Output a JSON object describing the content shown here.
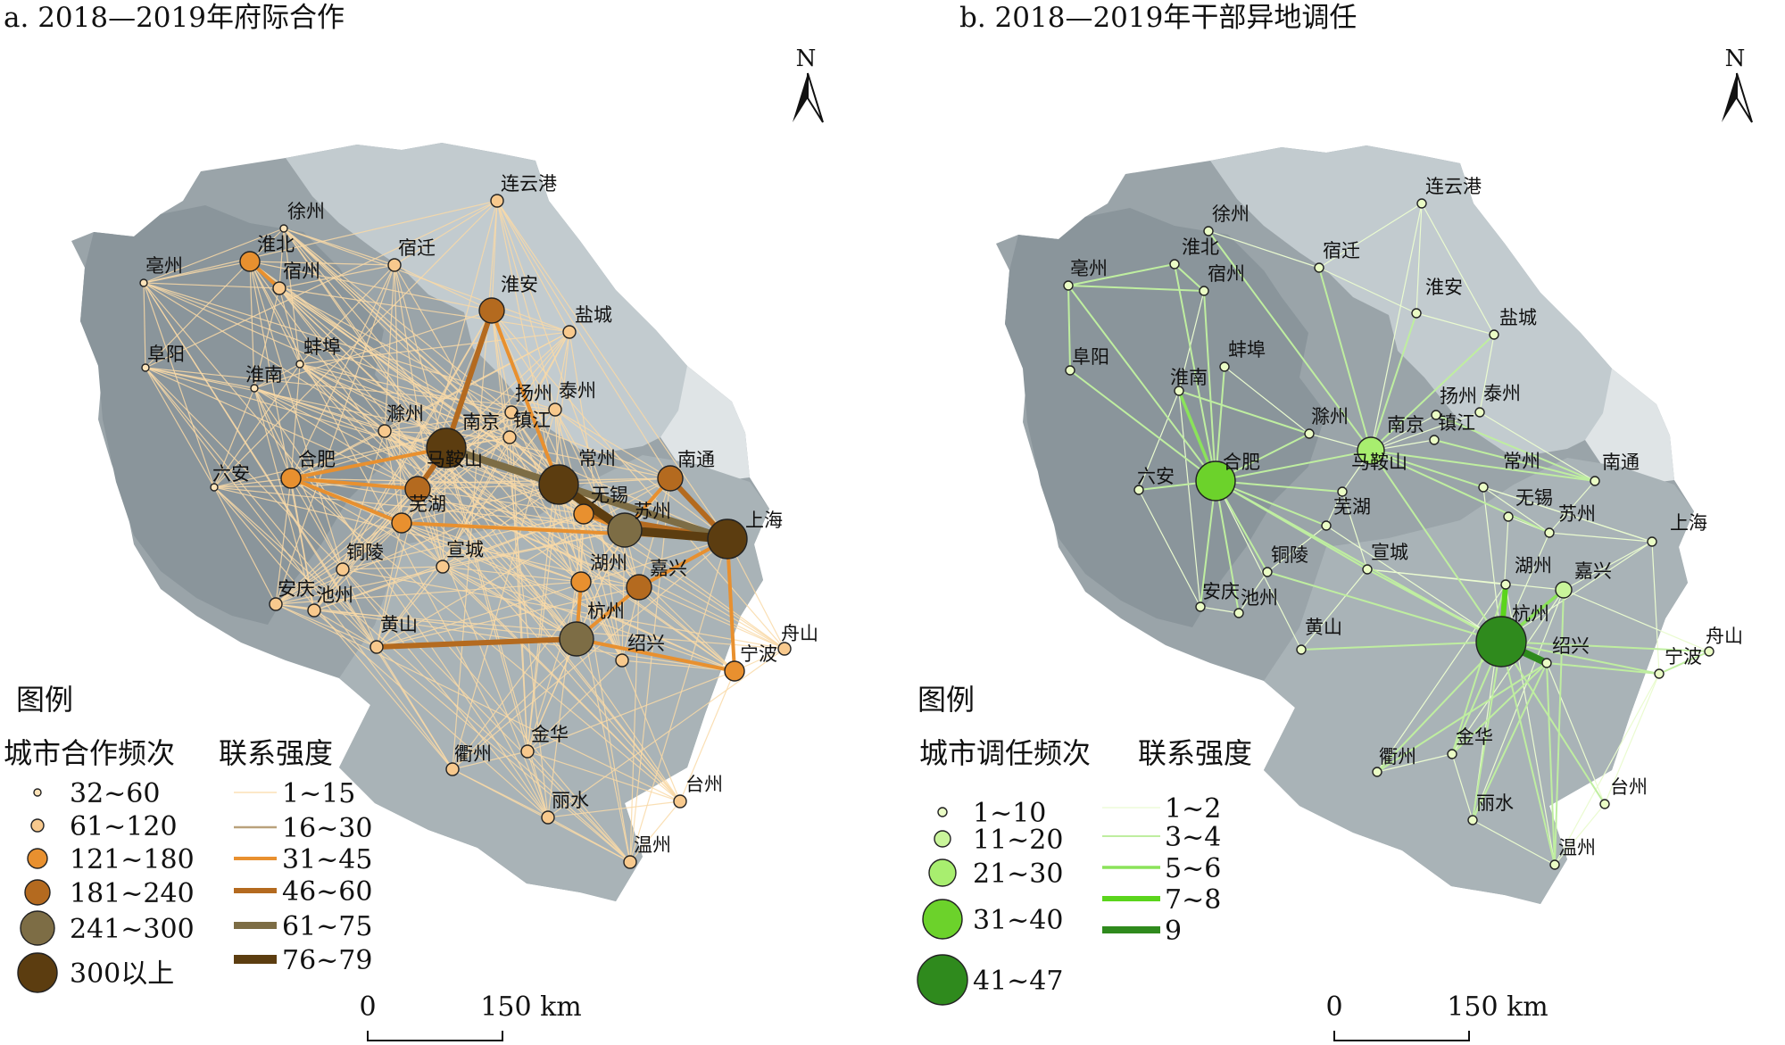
{
  "maps": [
    {
      "id": "a",
      "title": "a. 2018—2019年府际合作",
      "legend": {
        "heading": "图例",
        "node_title": "城市合作频次",
        "link_title": "联系强度",
        "node_classes": [
          "32~60",
          "61~120",
          "121~180",
          "181~240",
          "241~300",
          "300以上"
        ],
        "link_classes": [
          "1~15",
          "16~30",
          "31~45",
          "46~60",
          "61~75",
          "76~79"
        ]
      },
      "north_label": "N",
      "scale": {
        "zero": "0",
        "distance": "150 km"
      },
      "colors": {
        "nodes": [
          "#fde3b8",
          "#f8c98d",
          "#e8902f",
          "#b46a1f",
          "#7d6d45",
          "#5c3d10"
        ],
        "links": [
          "#f9d9a7",
          "#b9a27c",
          "#e8902f",
          "#b46a1f",
          "#7d6d45",
          "#5c3d10"
        ]
      }
    },
    {
      "id": "b",
      "title": "b. 2018—2019年干部异地调任",
      "legend": {
        "heading": "图例",
        "node_title": "城市调任频次",
        "link_title": "联系强度",
        "node_classes": [
          "1~10",
          "11~20",
          "21~30",
          "31~40",
          "41~47"
        ],
        "link_classes": [
          "1~2",
          "3~4",
          "5~6",
          "7~8",
          "9"
        ]
      },
      "north_label": "N",
      "scale": {
        "zero": "0",
        "distance": "150 km"
      },
      "colors": {
        "nodes": [
          "#eafcc5",
          "#c9f59a",
          "#a8ee6f",
          "#6cd22b",
          "#2f8a1d"
        ],
        "links": [
          "#eafbd0",
          "#bfeea0",
          "#8be35a",
          "#5bd51c",
          "#2f8a1d"
        ]
      }
    }
  ],
  "cities": [
    {
      "name": "连云港"
    },
    {
      "name": "徐州"
    },
    {
      "name": "淮北"
    },
    {
      "name": "宿迁"
    },
    {
      "name": "亳州"
    },
    {
      "name": "宿州"
    },
    {
      "name": "淮安"
    },
    {
      "name": "盐城"
    },
    {
      "name": "阜阳"
    },
    {
      "name": "蚌埠"
    },
    {
      "name": "淮南"
    },
    {
      "name": "扬州"
    },
    {
      "name": "泰州"
    },
    {
      "name": "滁州"
    },
    {
      "name": "南京"
    },
    {
      "name": "镇江"
    },
    {
      "name": "六安"
    },
    {
      "name": "合肥"
    },
    {
      "name": "马鞍山"
    },
    {
      "name": "常州"
    },
    {
      "name": "南通"
    },
    {
      "name": "芜湖"
    },
    {
      "name": "无锡"
    },
    {
      "name": "苏州"
    },
    {
      "name": "上海"
    },
    {
      "name": "宣城"
    },
    {
      "name": "铜陵"
    },
    {
      "name": "湖州"
    },
    {
      "name": "嘉兴"
    },
    {
      "name": "安庆"
    },
    {
      "name": "池州"
    },
    {
      "name": "杭州"
    },
    {
      "name": "黄山"
    },
    {
      "name": "绍兴"
    },
    {
      "name": "舟山"
    },
    {
      "name": "宁波"
    },
    {
      "name": "衢州"
    },
    {
      "name": "金华"
    },
    {
      "name": "丽水"
    },
    {
      "name": "台州"
    },
    {
      "name": "温州"
    }
  ],
  "cooperation_node_class": [
    1,
    0,
    2,
    1,
    0,
    1,
    3,
    1,
    0,
    0,
    0,
    1,
    1,
    1,
    5,
    1,
    0,
    2,
    3,
    5,
    3,
    2,
    2,
    4,
    5,
    1,
    1,
    2,
    3,
    1,
    1,
    4,
    1,
    1,
    1,
    2,
    1,
    1,
    1,
    1,
    1
  ],
  "cooperation_strong_links": [
    {
      "from": "南京",
      "to": "淮安",
      "class": 3
    },
    {
      "from": "淮安",
      "to": "常州",
      "class": 2
    },
    {
      "from": "南京",
      "to": "常州",
      "class": 4
    },
    {
      "from": "马鞍山",
      "to": "南京",
      "class": 3
    },
    {
      "from": "南京",
      "to": "上海",
      "class": 4
    },
    {
      "from": "常州",
      "to": "苏州",
      "class": 5
    },
    {
      "from": "苏州",
      "to": "上海",
      "class": 5
    },
    {
      "from": "无锡",
      "to": "上海",
      "class": 3
    },
    {
      "from": "南通",
      "to": "上海",
      "class": 3
    },
    {
      "from": "常州",
      "to": "上海",
      "class": 3
    },
    {
      "from": "芜湖",
      "to": "上海",
      "class": 2
    },
    {
      "from": "黄山",
      "to": "杭州",
      "class": 3
    },
    {
      "from": "杭州",
      "to": "嘉兴",
      "class": 2
    },
    {
      "from": "杭州",
      "to": "宁波",
      "class": 2
    },
    {
      "from": "南京",
      "to": "合肥",
      "class": 2
    },
    {
      "from": "合肥",
      "to": "芜湖",
      "class": 2
    },
    {
      "from": "合肥",
      "to": "马鞍山",
      "class": 2
    },
    {
      "from": "苏州",
      "to": "无锡",
      "class": 2
    },
    {
      "from": "苏州",
      "to": "南通",
      "class": 2
    },
    {
      "from": "上海",
      "to": "嘉兴",
      "class": 2
    },
    {
      "from": "上海",
      "to": "宁波",
      "class": 2
    },
    {
      "from": "淮北",
      "to": "宿州",
      "class": 2
    },
    {
      "from": "湖州",
      "to": "杭州",
      "class": 2
    }
  ],
  "transfer_node_class": [
    0,
    0,
    0,
    0,
    0,
    0,
    0,
    0,
    0,
    0,
    0,
    0,
    0,
    0,
    2,
    0,
    0,
    3,
    0,
    0,
    0,
    0,
    0,
    0,
    0,
    0,
    0,
    0,
    1,
    0,
    0,
    4,
    0,
    0,
    0,
    0,
    0,
    0,
    0,
    0,
    0
  ],
  "transfer_links": [
    {
      "from": "合肥",
      "to": "淮南",
      "class": 2
    },
    {
      "from": "合肥",
      "to": "蚌埠",
      "class": 1
    },
    {
      "from": "合肥",
      "to": "六安",
      "class": 1
    },
    {
      "from": "合肥",
      "to": "亳州",
      "class": 1
    },
    {
      "from": "合肥",
      "to": "阜阳",
      "class": 1
    },
    {
      "from": "合肥",
      "to": "宿州",
      "class": 1
    },
    {
      "from": "合肥",
      "to": "淮北",
      "class": 1
    },
    {
      "from": "合肥",
      "to": "安庆",
      "class": 1
    },
    {
      "from": "合肥",
      "to": "池州",
      "class": 1
    },
    {
      "from": "合肥",
      "to": "铜陵",
      "class": 1
    },
    {
      "from": "合肥",
      "to": "芜湖",
      "class": 1
    },
    {
      "from": "合肥",
      "to": "马鞍山",
      "class": 1
    },
    {
      "from": "合肥",
      "to": "南京",
      "class": 1
    },
    {
      "from": "合肥",
      "to": "黄山",
      "class": 0
    },
    {
      "from": "合肥",
      "to": "宣城",
      "class": 1
    },
    {
      "from": "合肥",
      "to": "杭州",
      "class": 1
    },
    {
      "from": "合肥",
      "to": "滁州",
      "class": 1
    },
    {
      "from": "南京",
      "to": "盐城",
      "class": 1
    },
    {
      "from": "南京",
      "to": "宿迁",
      "class": 1
    },
    {
      "from": "南京",
      "to": "连云港",
      "class": 0
    },
    {
      "from": "南京",
      "to": "淮安",
      "class": 1
    },
    {
      "from": "南京",
      "to": "南通",
      "class": 1
    },
    {
      "from": "南京",
      "to": "徐州",
      "class": 1
    },
    {
      "from": "南京",
      "to": "扬州",
      "class": 0
    },
    {
      "from": "南京",
      "to": "镇江",
      "class": 0
    },
    {
      "from": "南京",
      "to": "常州",
      "class": 1
    },
    {
      "from": "南京",
      "to": "泰州",
      "class": 0
    },
    {
      "from": "南京",
      "to": "苏州",
      "class": 1
    },
    {
      "from": "南京",
      "to": "杭州",
      "class": 1
    },
    {
      "from": "南京",
      "to": "上海",
      "class": 0
    },
    {
      "from": "杭州",
      "to": "湖州",
      "class": 3
    },
    {
      "from": "杭州",
      "to": "绍兴",
      "class": 4
    },
    {
      "from": "杭州",
      "to": "嘉兴",
      "class": 2
    },
    {
      "from": "杭州",
      "to": "宁波",
      "class": 1
    },
    {
      "from": "杭州",
      "to": "舟山",
      "class": 1
    },
    {
      "from": "杭州",
      "to": "衢州",
      "class": 1
    },
    {
      "from": "杭州",
      "to": "金华",
      "class": 1
    },
    {
      "from": "杭州",
      "to": "丽水",
      "class": 1
    },
    {
      "from": "杭州",
      "to": "台州",
      "class": 1
    },
    {
      "from": "杭州",
      "to": "温州",
      "class": 1
    },
    {
      "from": "杭州",
      "to": "黄山",
      "class": 1
    },
    {
      "from": "杭州",
      "to": "宣城",
      "class": 1
    },
    {
      "from": "杭州",
      "to": "铜陵",
      "class": 1
    },
    {
      "from": "杭州",
      "to": "上海",
      "class": 0
    },
    {
      "from": "杭州",
      "to": "常州",
      "class": 0
    },
    {
      "from": "杭州",
      "to": "无锡",
      "class": 0
    },
    {
      "from": "杭州",
      "to": "芜湖",
      "class": 0
    },
    {
      "from": "杭州",
      "to": "苏州",
      "class": 0
    },
    {
      "from": "上海",
      "to": "嘉兴",
      "class": 0
    },
    {
      "from": "宁波",
      "to": "台州",
      "class": 0
    },
    {
      "from": "宁波",
      "to": "舟山",
      "class": 1
    },
    {
      "from": "宁波",
      "to": "温州",
      "class": 0
    },
    {
      "from": "绍兴",
      "to": "宁波",
      "class": 1
    },
    {
      "from": "绍兴",
      "to": "温州",
      "class": 1
    },
    {
      "from": "绍兴",
      "to": "丽水",
      "class": 1
    },
    {
      "from": "绍兴",
      "to": "衢州",
      "class": 1
    },
    {
      "from": "绍兴",
      "to": "台州",
      "class": 0
    },
    {
      "from": "绍兴",
      "to": "金华",
      "class": 1
    },
    {
      "from": "湖州",
      "to": "金华",
      "class": 1
    },
    {
      "from": "湖州",
      "to": "衢州",
      "class": 0
    },
    {
      "from": "湖州",
      "to": "丽水",
      "class": 0
    },
    {
      "from": "湖州",
      "to": "温州",
      "class": 0
    },
    {
      "from": "嘉兴",
      "to": "金华",
      "class": 0
    },
    {
      "from": "嘉兴",
      "to": "丽水",
      "class": 0
    },
    {
      "from": "嘉兴",
      "to": "温州",
      "class": 1
    },
    {
      "from": "嘉兴",
      "to": "舟山",
      "class": 0
    },
    {
      "from": "淮南",
      "to": "滁州",
      "class": 1
    },
    {
      "from": "淮南",
      "to": "安庆",
      "class": 0
    },
    {
      "from": "淮南",
      "to": "宿州",
      "class": 0
    },
    {
      "from": "淮北",
      "to": "宿州",
      "class": 1
    },
    {
      "from": "淮北",
      "to": "亳州",
      "class": 1
    },
    {
      "from": "宿州",
      "to": "亳州",
      "class": 1
    },
    {
      "from": "阜阳",
      "to": "亳州",
      "class": 1
    },
    {
      "from": "宿迁",
      "to": "淮安",
      "class": 0
    },
    {
      "from": "宿迁",
      "to": "徐州",
      "class": 0
    },
    {
      "from": "宿迁",
      "to": "连云港",
      "class": 0
    },
    {
      "from": "连云港",
      "to": "淮安",
      "class": 0
    },
    {
      "from": "连云港",
      "to": "盐城",
      "class": 0
    },
    {
      "from": "淮安",
      "to": "盐城",
      "class": 0
    },
    {
      "from": "扬州",
      "to": "南通",
      "class": 1
    },
    {
      "from": "镇江",
      "to": "南通",
      "class": 1
    },
    {
      "from": "泰州",
      "to": "南通",
      "class": 0
    },
    {
      "from": "常州",
      "to": "上海",
      "class": 0
    },
    {
      "from": "常州",
      "to": "苏州",
      "class": 0
    },
    {
      "from": "苏州",
      "to": "上海",
      "class": 0
    },
    {
      "from": "无锡",
      "to": "苏州",
      "class": 0
    },
    {
      "from": "马鞍山",
      "to": "芜湖",
      "class": 0
    },
    {
      "from": "马鞍山",
      "to": "宣城",
      "class": 0
    },
    {
      "from": "芜湖",
      "to": "铜陵",
      "class": 0
    },
    {
      "from": "铜陵",
      "to": "池州",
      "class": 0
    },
    {
      "from": "池州",
      "to": "安庆",
      "class": 0
    },
    {
      "from": "黄山",
      "to": "宣城",
      "class": 0
    },
    {
      "from": "衢州",
      "to": "金华",
      "class": 0
    },
    {
      "from": "金华",
      "to": "丽水",
      "class": 0
    },
    {
      "from": "丽水",
      "to": "温州",
      "class": 0
    },
    {
      "from": "台州",
      "to": "温州",
      "class": 0
    },
    {
      "from": "滁州",
      "to": "南京",
      "class": 0
    },
    {
      "from": "蚌埠",
      "to": "滁州",
      "class": 0
    },
    {
      "from": "六安",
      "to": "淮南",
      "class": 0
    },
    {
      "from": "六安",
      "to": "安庆",
      "class": 0
    },
    {
      "from": "宣城",
      "to": "湖州",
      "class": 0
    },
    {
      "from": "宣城",
      "to": "绍兴",
      "class": 0
    },
    {
      "from": "宣城",
      "to": "嘉兴",
      "class": 0
    },
    {
      "from": "上海",
      "to": "宁波",
      "class": 0
    },
    {
      "from": "南通",
      "to": "苏州",
      "class": 0
    },
    {
      "from": "盐城",
      "to": "泰州",
      "class": 0
    },
    {
      "from": "马鞍山",
      "to": "南京",
      "class": 0
    }
  ]
}
